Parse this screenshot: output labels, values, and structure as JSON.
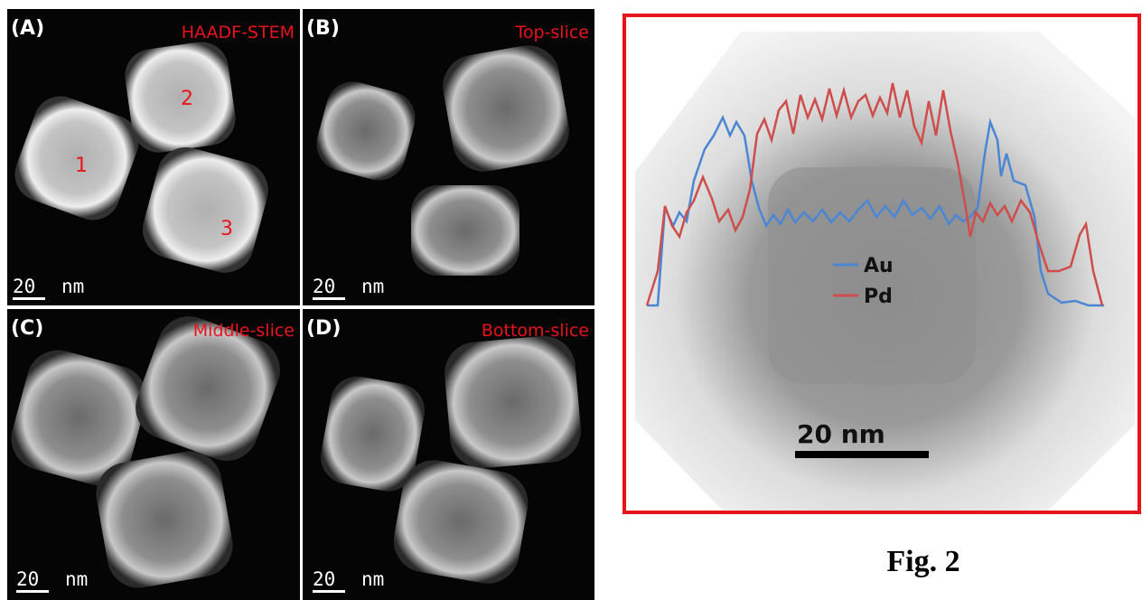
{
  "panels": [
    {
      "label": "(A)",
      "title": "HAADF-STEM",
      "scale": "20",
      "unit": "nm"
    },
    {
      "label": "(B)",
      "title": "Top-slice",
      "scale": "20",
      "unit": "nm"
    },
    {
      "label": "(C)",
      "title": "Middle-slice",
      "scale": "20",
      "unit": "nm"
    },
    {
      "label": "(D)",
      "title": "Bottom-slice",
      "scale": "20",
      "unit": "nm"
    }
  ],
  "particle_labels": [
    "1",
    "2",
    "3"
  ],
  "profile": {
    "legend": [
      "Au",
      "Pd"
    ],
    "scale": "20 nm"
  },
  "caption": "Fig. 2"
}
